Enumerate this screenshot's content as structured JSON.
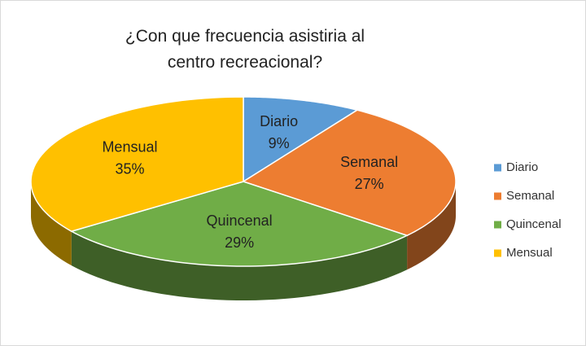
{
  "chart_data": {
    "type": "pie",
    "title": "¿Con que frecuencia asistiria al centro recreacional?",
    "categories": [
      "Diario",
      "Semanal",
      "Quincenal",
      "Mensual"
    ],
    "values": [
      9,
      27,
      29,
      35
    ],
    "value_labels": [
      "9%",
      "27%",
      "29%",
      "35%"
    ],
    "colors": [
      "#5b9bd5",
      "#ed7d31",
      "#70ad47",
      "#ffc000"
    ],
    "legend": "right"
  }
}
